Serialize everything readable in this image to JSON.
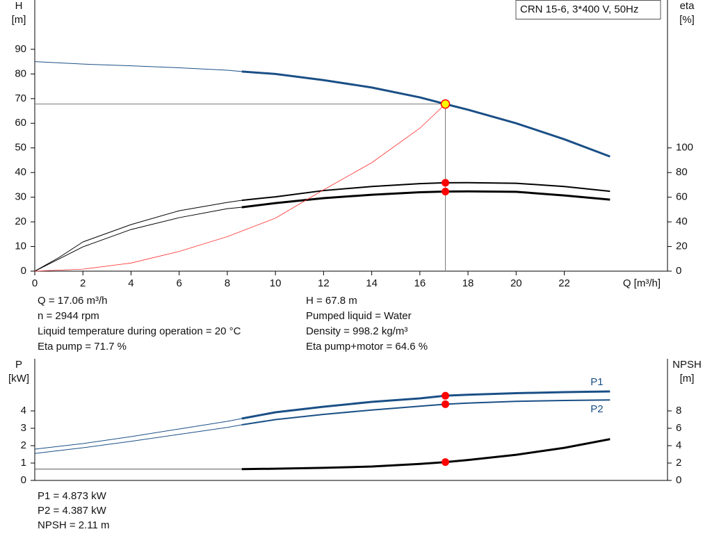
{
  "chart_data": [
    {
      "type": "line",
      "title": "CRN 15-6, 3*400 V, 50Hz",
      "x_label": "Q [m³/h]",
      "y_label": [
        "H",
        "[m]"
      ],
      "y2_label": [
        "eta",
        "[%]"
      ],
      "xlim": [
        0,
        26
      ],
      "xticks": [
        0,
        2,
        4,
        6,
        8,
        10,
        12,
        14,
        16,
        18,
        20,
        22
      ],
      "ylim": [
        0,
        110
      ],
      "yticks": [
        0,
        10,
        20,
        30,
        40,
        50,
        60,
        70,
        80,
        90
      ],
      "y2lim": [
        0,
        220
      ],
      "y2ticks": [
        0,
        20,
        40,
        60,
        80,
        100
      ],
      "series": [
        {
          "color": "#1a4f86",
          "width": 1,
          "x": [
            0,
            2,
            4,
            6,
            8,
            8.6
          ],
          "values": [
            85,
            84,
            83.3,
            82.5,
            81.5,
            81
          ]
        },
        {
          "color": "#1a4f86",
          "width": 3,
          "x": [
            8.6,
            10,
            12,
            14,
            16,
            17.06,
            18,
            20,
            22,
            23.9
          ],
          "values": [
            81,
            80,
            77.5,
            74.5,
            70.5,
            67.8,
            65.5,
            60,
            53.5,
            46.5
          ]
        },
        {
          "color": "#000000",
          "width": 1,
          "axis": "y2",
          "x": [
            0,
            1,
            2,
            4,
            6,
            8,
            8.6
          ],
          "values": [
            0,
            11,
            23.7,
            37.8,
            49,
            55.8,
            57.5
          ]
        },
        {
          "color": "#000000",
          "width": 2,
          "axis": "y2",
          "x": [
            8.6,
            10,
            12,
            14,
            16,
            17.06,
            18,
            20,
            22,
            23.9
          ],
          "values": [
            57.5,
            60.3,
            65.4,
            68.7,
            71,
            71.7,
            71.8,
            71.3,
            68.7,
            64.8
          ]
        },
        {
          "color": "#000000",
          "width": 1,
          "axis": "y2",
          "x": [
            0,
            2,
            4,
            6,
            8,
            8.6
          ],
          "values": [
            0,
            19.7,
            33.8,
            43.4,
            50.7,
            51.8
          ]
        },
        {
          "color": "#000000",
          "width": 3,
          "axis": "y2",
          "x": [
            8.6,
            10,
            12,
            14,
            16,
            17.06,
            18,
            20,
            22,
            23.9
          ],
          "values": [
            51.8,
            55.2,
            59.2,
            62,
            64,
            64.6,
            64.7,
            64.4,
            61.4,
            58
          ]
        },
        {
          "color": "#ff3030",
          "width": 0.8,
          "x": [
            0,
            2,
            4,
            6,
            8,
            10,
            12,
            14,
            16,
            17.06
          ],
          "values": [
            0,
            0.8,
            3.3,
            8,
            14,
            21.5,
            33,
            44,
            58,
            67.8
          ]
        }
      ],
      "points": [
        {
          "x": 17.06,
          "y": 67.8,
          "color": "#ffff00",
          "crosshair": true
        },
        {
          "x": 17.06,
          "y": 71.7,
          "color": "#ff0000",
          "axis": "y2"
        },
        {
          "x": 17.06,
          "y": 64.6,
          "color": "#ff0000",
          "axis": "y2"
        }
      ],
      "info": [
        [
          "Q = 17.06 m³/h",
          "n = 2944 rpm",
          "Liquid temperature during operation = 20 °C",
          "Eta pump = 71.7 %"
        ],
        [
          "H = 67.8 m",
          "Pumped liquid = Water",
          "Density = 998.2 kg/m³",
          "Eta pump+motor = 64.6 %"
        ]
      ]
    },
    {
      "type": "line",
      "y_label": [
        "P",
        "[kW]"
      ],
      "y2_label": [
        "NPSH",
        "[m]"
      ],
      "xlim": [
        0,
        26
      ],
      "ylim": [
        0,
        7
      ],
      "yticks": [
        0,
        1,
        2,
        3,
        4
      ],
      "y2lim": [
        0,
        14
      ],
      "y2ticks": [
        0,
        2,
        4,
        6,
        8
      ],
      "series": [
        {
          "color": "#1a4f86",
          "width": 1,
          "x": [
            0,
            2,
            4,
            6,
            8,
            8.6
          ],
          "values": [
            1.8,
            2.12,
            2.52,
            2.96,
            3.4,
            3.56
          ]
        },
        {
          "name": "P1",
          "label_side": "above",
          "color": "#1a4f86",
          "width": 3,
          "x": [
            8.6,
            10,
            12,
            14,
            16,
            17.06,
            18,
            20,
            22,
            23.9
          ],
          "values": [
            3.56,
            3.92,
            4.24,
            4.52,
            4.72,
            4.873,
            4.93,
            5.02,
            5.08,
            5.12
          ]
        },
        {
          "color": "#1a4f86",
          "width": 1,
          "x": [
            0,
            2,
            4,
            6,
            8,
            8.6
          ],
          "values": [
            1.55,
            1.88,
            2.25,
            2.65,
            3.05,
            3.2
          ]
        },
        {
          "name": "P2",
          "label_side": "below",
          "color": "#1a4f86",
          "width": 2,
          "x": [
            8.6,
            10,
            12,
            14,
            16,
            17.06,
            18,
            20,
            22,
            23.9
          ],
          "values": [
            3.2,
            3.5,
            3.8,
            4.05,
            4.27,
            4.387,
            4.45,
            4.55,
            4.6,
            4.63
          ]
        },
        {
          "color": "#555555",
          "width": 1,
          "axis": "y2",
          "x": [
            0,
            8.6
          ],
          "values": [
            1.3,
            1.3
          ]
        },
        {
          "color": "#000000",
          "width": 3,
          "axis": "y2",
          "x": [
            8.6,
            10,
            12,
            14,
            16,
            17.06,
            18,
            20,
            22,
            23.9
          ],
          "values": [
            1.3,
            1.35,
            1.45,
            1.6,
            1.9,
            2.11,
            2.35,
            2.95,
            3.75,
            4.75
          ]
        }
      ],
      "points": [
        {
          "x": 17.06,
          "y": 4.873,
          "color": "#ff0000"
        },
        {
          "x": 17.06,
          "y": 4.387,
          "color": "#ff0000"
        },
        {
          "x": 17.06,
          "y": 2.11,
          "color": "#ff0000",
          "axis": "y2"
        }
      ],
      "info": [
        [
          "P1 = 4.873 kW",
          "P2 = 4.387 kW",
          "NPSH = 2.11 m"
        ]
      ]
    }
  ]
}
